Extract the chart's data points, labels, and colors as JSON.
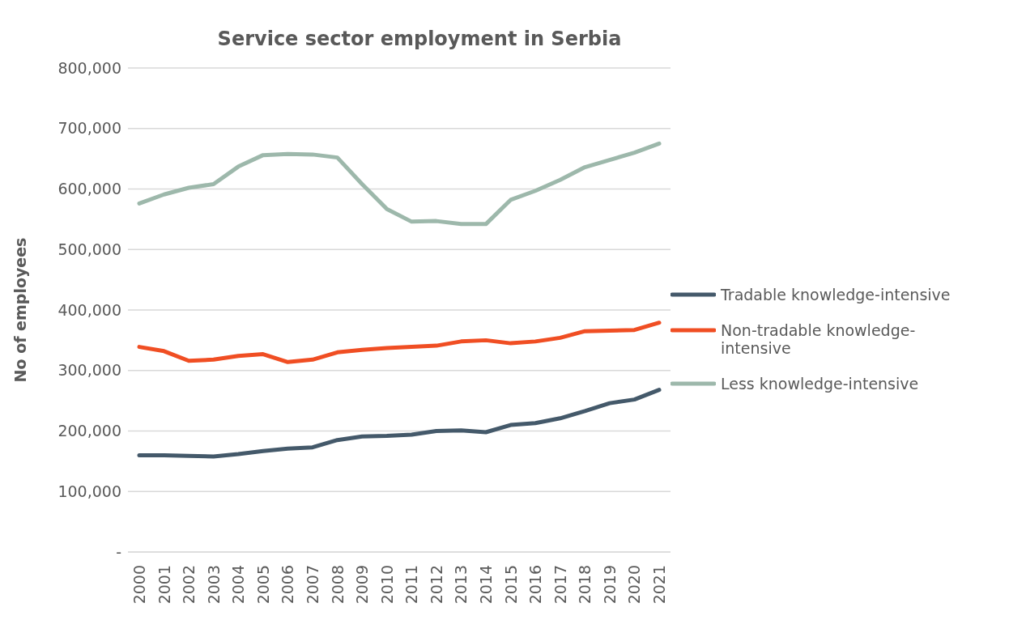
{
  "chart_data": {
    "type": "line",
    "title": "Service sector employment in Serbia",
    "ylabel": "No of employees",
    "categories": [
      "2000",
      "2001",
      "2002",
      "2003",
      "2004",
      "2005",
      "2006",
      "2007",
      "2008",
      "2009",
      "2010",
      "2011",
      "2012",
      "2013",
      "2014",
      "2015",
      "2016",
      "2017",
      "2018",
      "2019",
      "2020",
      "2021"
    ],
    "series": [
      {
        "name": "Tradable knowledge-intensive",
        "color": "#44596a",
        "values": [
          160000,
          160000,
          159000,
          158000,
          162000,
          167000,
          171000,
          173000,
          185000,
          191000,
          192000,
          194000,
          200000,
          201000,
          198000,
          210000,
          213000,
          221000,
          233000,
          246000,
          252000,
          268000
        ]
      },
      {
        "name": "Non-tradable knowledge-intensive",
        "color": "#f04e23",
        "values": [
          339000,
          332000,
          316000,
          318000,
          324000,
          327000,
          314000,
          318000,
          330000,
          334000,
          337000,
          339000,
          341000,
          348000,
          350000,
          345000,
          348000,
          354000,
          365000,
          366000,
          367000,
          379000
        ]
      },
      {
        "name": "Less knowledge-intensive",
        "color": "#9db8ab",
        "values": [
          576000,
          591000,
          602000,
          608000,
          637000,
          656000,
          658000,
          657000,
          652000,
          608000,
          567000,
          546000,
          547000,
          542000,
          542000,
          582000,
          597000,
          615000,
          636000,
          648000,
          660000,
          675000
        ]
      }
    ],
    "ylim": [
      0,
      800000
    ],
    "yticks": [
      {
        "value": 0,
        "label": "-"
      },
      {
        "value": 100000,
        "label": "100,000"
      },
      {
        "value": 200000,
        "label": "200,000"
      },
      {
        "value": 300000,
        "label": "300,000"
      },
      {
        "value": 400000,
        "label": "400,000"
      },
      {
        "value": 500000,
        "label": "500,000"
      },
      {
        "value": 600000,
        "label": "600,000"
      },
      {
        "value": 700000,
        "label": "700,000"
      },
      {
        "value": 800000,
        "label": "800,000"
      }
    ],
    "grid": "y",
    "legend": "right",
    "marker": "none",
    "line_style": "solid"
  }
}
